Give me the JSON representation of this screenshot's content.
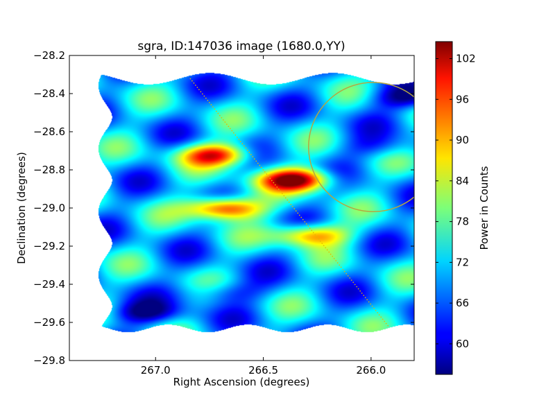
{
  "chart_data": {
    "type": "heatmap",
    "title": "sgra, ID:147036 image (1680.0,YY)",
    "xlabel": "Right Ascension (degrees)",
    "ylabel": "Declination (degrees)",
    "xlim": [
      267.4,
      265.8
    ],
    "ylim": [
      -29.8,
      -28.2
    ],
    "x_ticks": [
      267.0,
      266.5,
      266.0
    ],
    "x_tick_labels": [
      "267.0",
      "266.5",
      "266.0"
    ],
    "y_ticks": [
      -28.2,
      -28.4,
      -28.6,
      -28.8,
      -29.0,
      -29.2,
      -29.4,
      -29.6,
      -29.8
    ],
    "y_tick_labels": [
      "−28.2",
      "−28.4",
      "−28.6",
      "−28.8",
      "−29.0",
      "−29.2",
      "−29.4",
      "−29.6",
      "−29.8"
    ],
    "colorbar": {
      "label": "Power in Counts",
      "range": [
        55.5,
        104.5
      ],
      "ticks": [
        60,
        66,
        72,
        78,
        84,
        90,
        96,
        102
      ],
      "tick_labels": [
        "60",
        "66",
        "72",
        "78",
        "84",
        "90",
        "96",
        "102"
      ],
      "colormap": "jet"
    },
    "map": {
      "baseline": 70,
      "ra_range": [
        265.72,
        267.22
      ],
      "dec_range": [
        -29.63,
        -28.32
      ],
      "features": [
        {
          "ra": 266.68,
          "dec": -29.0,
          "peak": 102
        },
        {
          "ra": 266.35,
          "dec": -28.85,
          "peak": 104
        },
        {
          "ra": 266.72,
          "dec": -28.72,
          "peak": 97
        },
        {
          "ra": 266.28,
          "dec": -29.14,
          "peak": 94
        },
        {
          "ra": 265.82,
          "dec": -28.42,
          "peak": 56
        },
        {
          "ra": 267.05,
          "dec": -29.55,
          "peak": 58
        },
        {
          "ra": 265.98,
          "dec": -28.68,
          "peak": 64
        },
        {
          "ra": 266.68,
          "dec": -29.44,
          "peak": 62
        }
      ]
    },
    "overlays": {
      "circle": {
        "ra": 265.99,
        "dec": -28.68,
        "radius_deg": 0.3,
        "color": "#b5a642"
      },
      "line": {
        "ra": [
          266.84,
          265.92
        ],
        "dec": [
          -28.32,
          -29.62
        ],
        "color": "#e3b800",
        "style": "dotted"
      }
    }
  }
}
